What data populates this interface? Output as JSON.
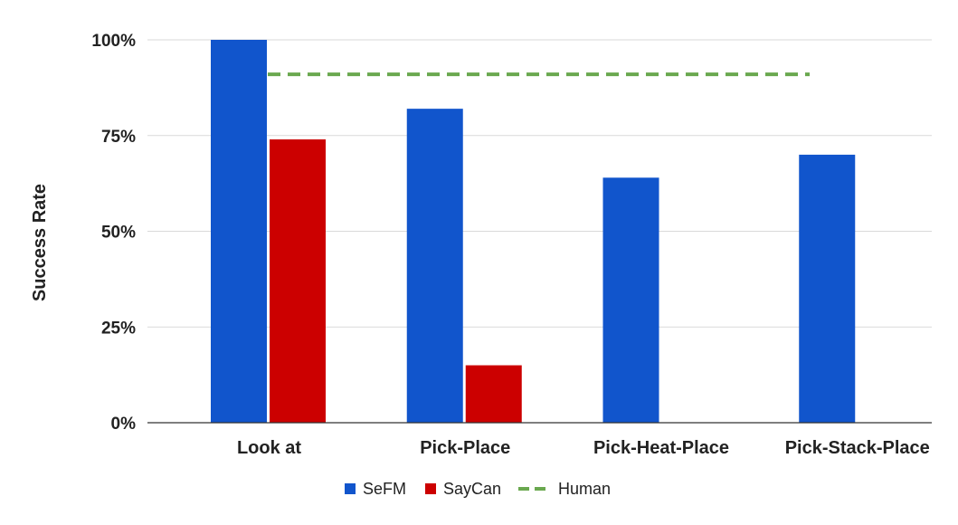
{
  "chart_data": {
    "type": "bar",
    "title": "",
    "xlabel": "",
    "ylabel": "Success Rate",
    "ylim": [
      0,
      100
    ],
    "yticks": [
      0,
      25,
      50,
      75,
      100
    ],
    "ytick_labels": [
      "0%",
      "25%",
      "50%",
      "75%",
      "100%"
    ],
    "grid": true,
    "legend_position": "bottom",
    "categories": [
      "Look at",
      "Pick-Place",
      "Pick-Heat-Place",
      "Pick-Stack-Place"
    ],
    "series": [
      {
        "name": "SeFM",
        "kind": "bar",
        "color": "#1155cc",
        "values": [
          100,
          82,
          64,
          70
        ]
      },
      {
        "name": "SayCan",
        "kind": "bar",
        "color": "#cc0000",
        "values": [
          74,
          15,
          null,
          null
        ]
      },
      {
        "name": "Human",
        "kind": "dashed-line",
        "color": "#6aa84f",
        "value": 91
      }
    ]
  }
}
